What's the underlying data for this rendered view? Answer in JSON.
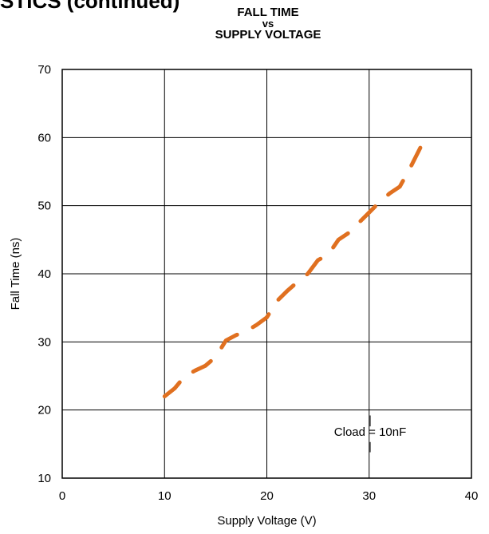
{
  "page": {
    "section_header": "STICS (continued)"
  },
  "chart_data": {
    "type": "line",
    "title_lines": [
      "FALL TIME",
      "vs",
      "SUPPLY VOLTAGE"
    ],
    "xlabel": "Supply Voltage (V)",
    "ylabel": "Fall Time (ns)",
    "xlim": [
      0,
      40
    ],
    "ylim": [
      10,
      70
    ],
    "xticks": [
      "0",
      "10",
      "20",
      "30",
      "40"
    ],
    "yticks": [
      "10",
      "20",
      "30",
      "40",
      "50",
      "60",
      "70"
    ],
    "grid": true,
    "annotation": "Cload = 10nF",
    "series_color": "#E07020",
    "series": [
      {
        "line_style": "dashed",
        "x": [
          10,
          11,
          12,
          13,
          14,
          15,
          16,
          17,
          18,
          19,
          20,
          21,
          22,
          23,
          24,
          25,
          26,
          27,
          28,
          29,
          30,
          31,
          32,
          33,
          34,
          35
        ],
        "y": [
          22,
          23.2,
          25,
          25.8,
          26.5,
          27.8,
          30.2,
          31,
          31.6,
          32.5,
          33.6,
          36,
          37.5,
          38.8,
          40,
          42,
          42.8,
          45,
          46,
          47.5,
          49,
          50.5,
          51.8,
          52.8,
          55.5,
          58.5
        ]
      }
    ]
  }
}
